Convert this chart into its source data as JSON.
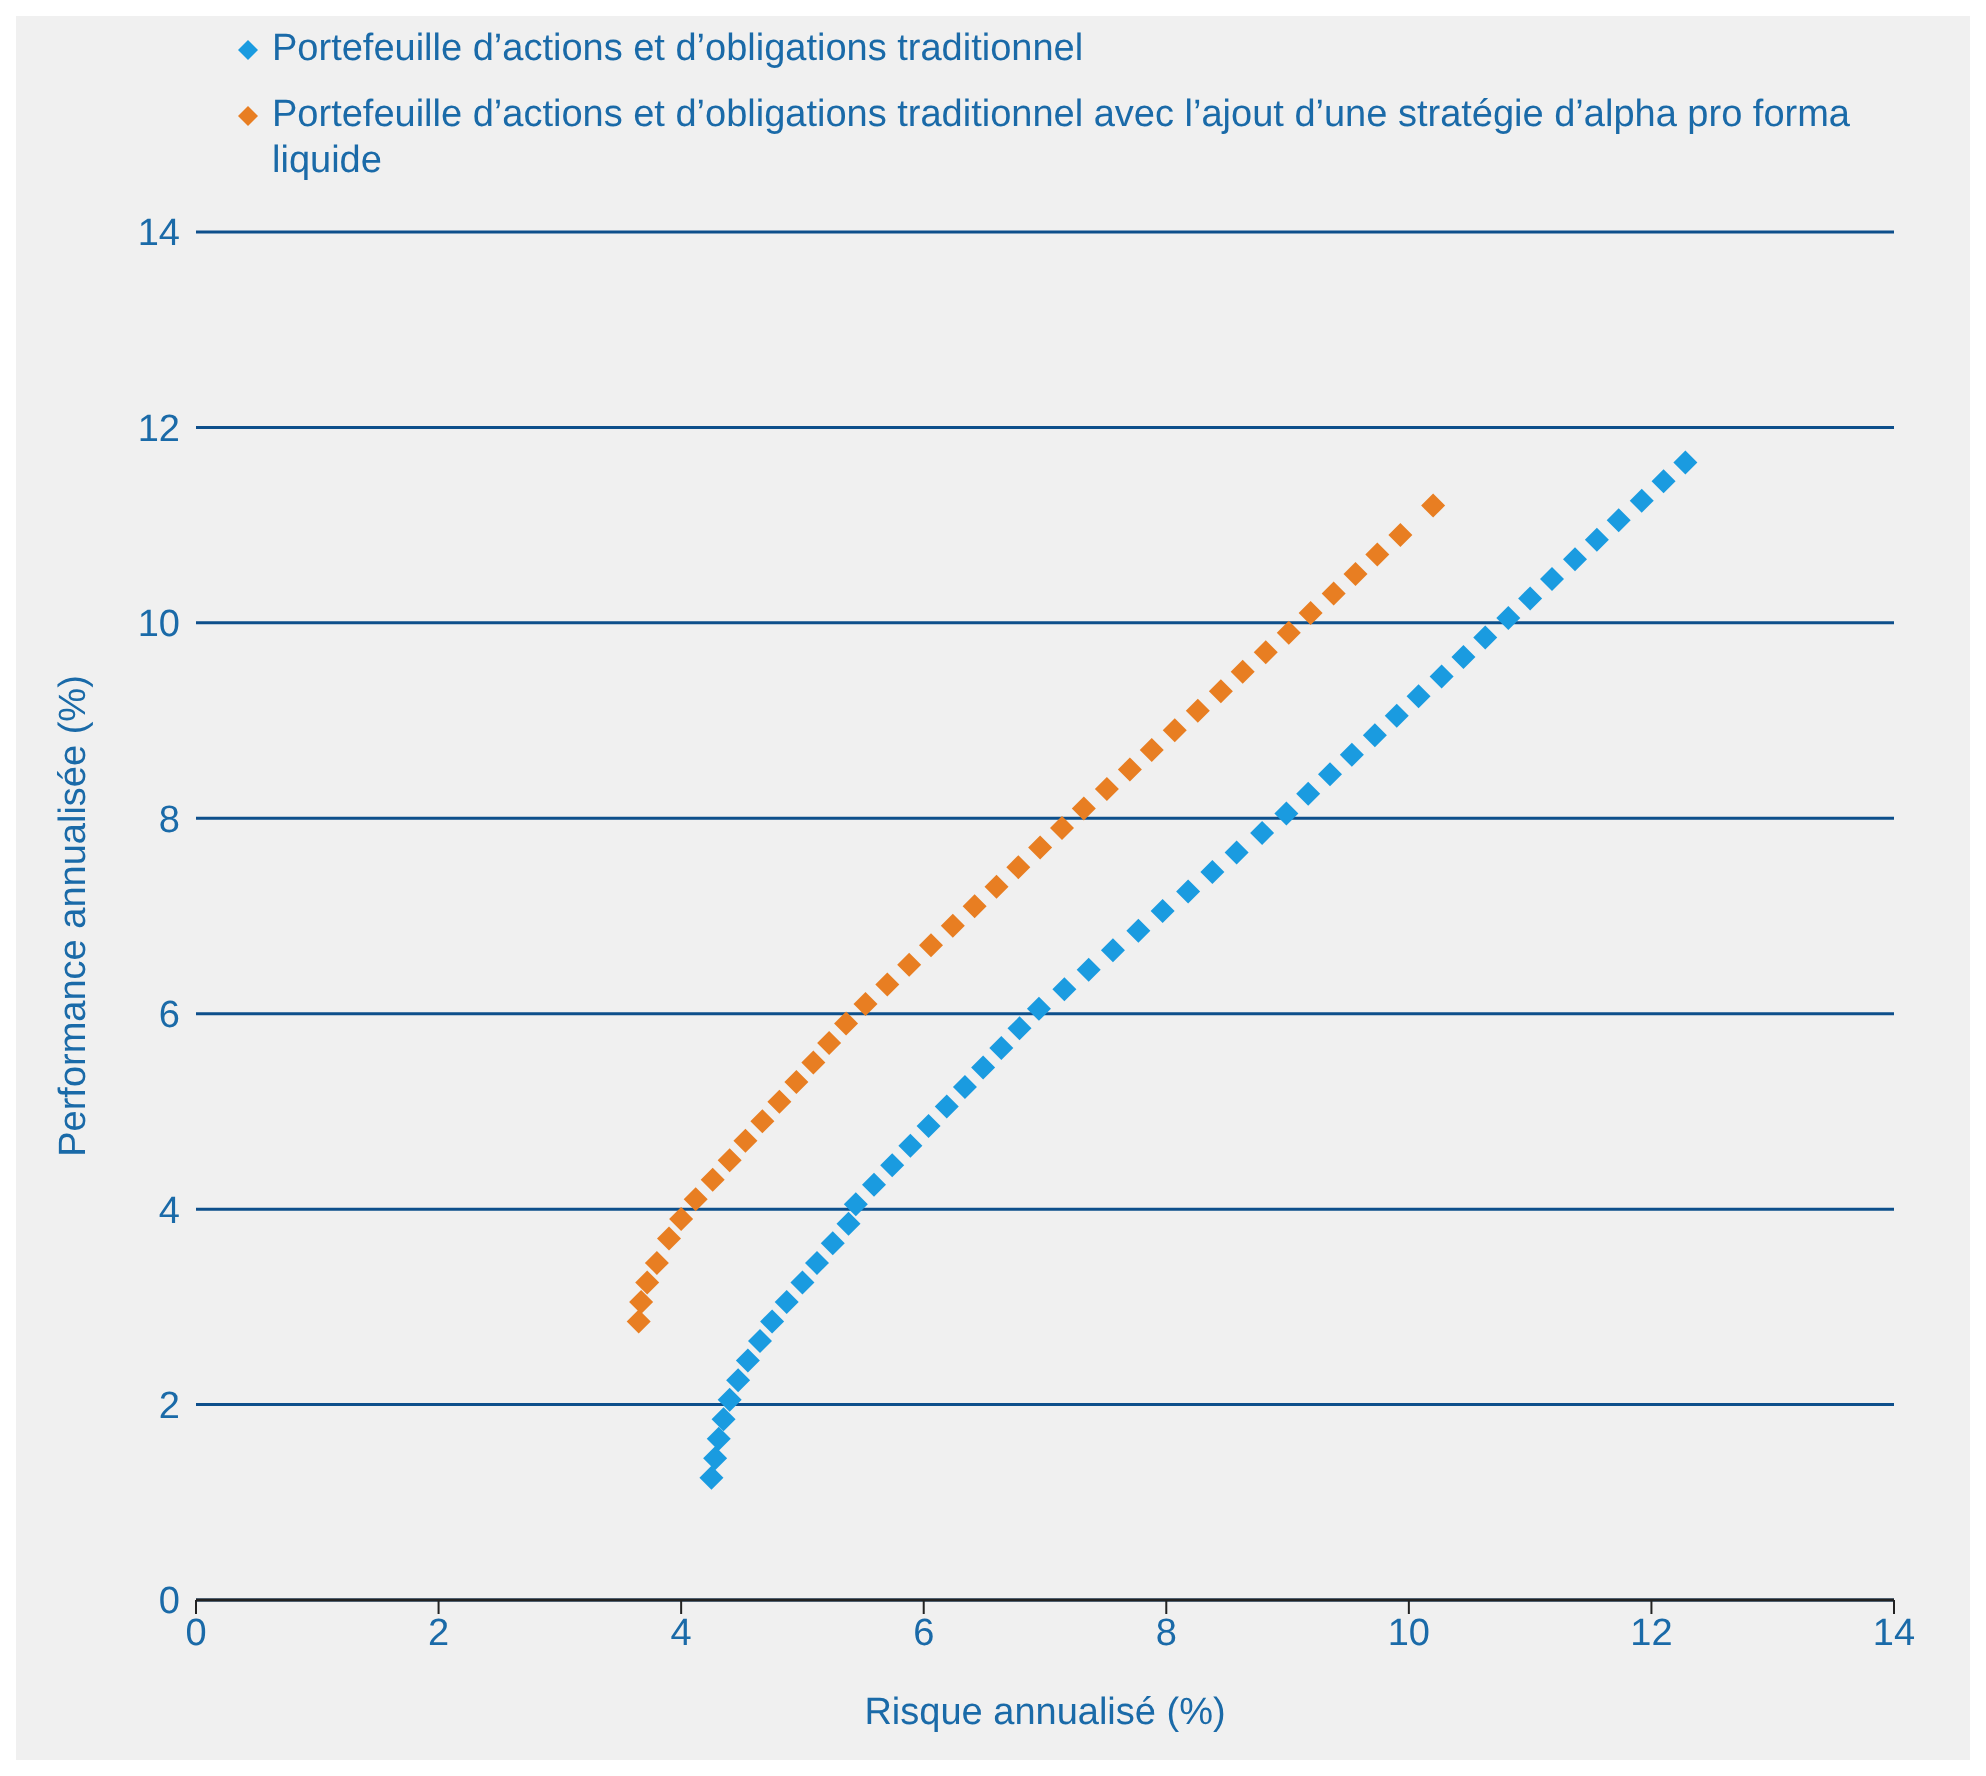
{
  "chart_data": {
    "type": "scatter",
    "xlabel": "Risque annualisé (%)",
    "ylabel": "Performance annualisée (%)",
    "xlim": [
      0,
      14
    ],
    "xticks": [
      0,
      2,
      4,
      6,
      8,
      10,
      12,
      14
    ],
    "ylim": [
      0,
      14
    ],
    "yticks": [
      0,
      2,
      4,
      6,
      8,
      10,
      12,
      14
    ],
    "grid": "y",
    "legend": "top left",
    "marker": "diamond",
    "series": [
      {
        "name": "Portefeuille d’actions et d’obligations traditionnel",
        "color": "#1a9be0",
        "x": [
          4.25,
          4.28,
          4.31,
          4.35,
          4.4,
          4.47,
          4.55,
          4.65,
          4.75,
          4.87,
          5.0,
          5.12,
          5.25,
          5.38,
          5.44,
          5.59,
          5.74,
          5.89,
          6.04,
          6.19,
          6.34,
          6.49,
          6.64,
          6.79,
          6.95,
          7.16,
          7.36,
          7.56,
          7.77,
          7.97,
          8.18,
          8.38,
          8.58,
          8.79,
          8.99,
          9.17,
          9.35,
          9.53,
          9.72,
          9.9,
          10.08,
          10.27,
          10.45,
          10.63,
          10.82,
          11.0,
          11.18,
          11.37,
          11.55,
          11.73,
          11.92,
          12.1,
          12.28
        ],
        "values": [
          1.25,
          1.45,
          1.65,
          1.85,
          2.05,
          2.25,
          2.45,
          2.65,
          2.85,
          3.05,
          3.25,
          3.45,
          3.65,
          3.85,
          4.05,
          4.25,
          4.45,
          4.65,
          4.85,
          5.05,
          5.25,
          5.45,
          5.65,
          5.85,
          6.05,
          6.25,
          6.45,
          6.65,
          6.85,
          7.05,
          7.25,
          7.45,
          7.65,
          7.85,
          8.05,
          8.25,
          8.45,
          8.65,
          8.85,
          9.05,
          9.25,
          9.45,
          9.65,
          9.85,
          10.05,
          10.25,
          10.45,
          10.65,
          10.85,
          11.05,
          11.25,
          11.45,
          11.64
        ]
      },
      {
        "name": "Portefeuille d’actions et d’obligations traditionnel avec l’ajout d’une stratégie d’alpha pro forma liquide",
        "color": "#e87e22",
        "x": [
          3.65,
          3.67,
          3.72,
          3.8,
          3.9,
          4.0,
          4.12,
          4.26,
          4.4,
          4.53,
          4.67,
          4.81,
          4.95,
          5.09,
          5.22,
          5.36,
          5.52,
          5.7,
          5.88,
          6.06,
          6.24,
          6.42,
          6.6,
          6.78,
          6.96,
          7.14,
          7.32,
          7.51,
          7.7,
          7.88,
          8.07,
          8.26,
          8.45,
          8.63,
          8.82,
          9.01,
          9.19,
          9.38,
          9.56,
          9.74,
          9.93,
          10.2
        ],
        "values": [
          2.85,
          3.05,
          3.25,
          3.45,
          3.7,
          3.9,
          4.1,
          4.3,
          4.5,
          4.7,
          4.9,
          5.1,
          5.3,
          5.5,
          5.7,
          5.9,
          6.1,
          6.3,
          6.5,
          6.7,
          6.9,
          7.1,
          7.3,
          7.5,
          7.7,
          7.9,
          8.1,
          8.3,
          8.5,
          8.7,
          8.9,
          9.1,
          9.3,
          9.5,
          9.7,
          9.9,
          10.1,
          10.3,
          10.5,
          10.7,
          10.9,
          11.2
        ]
      }
    ]
  }
}
